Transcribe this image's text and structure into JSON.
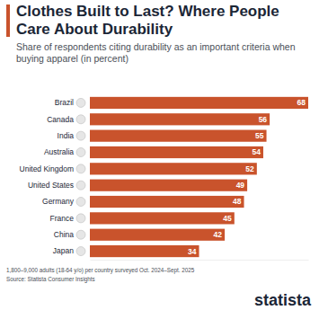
{
  "chart_data": {
    "type": "bar",
    "orientation": "horizontal",
    "title": "Clothes Built to Last? Where People Care About Durability",
    "subtitle": "Share of respondents citing durability as an important criteria when buying apparel (in percent)",
    "categories": [
      "Brazil",
      "Canada",
      "India",
      "Australia",
      "United Kingdom",
      "United States",
      "Germany",
      "France",
      "China",
      "Japan"
    ],
    "values": [
      68,
      56,
      55,
      54,
      52,
      49,
      48,
      45,
      42,
      34
    ],
    "color": "#c9532c",
    "xlim": [
      0,
      68
    ],
    "data_labels": true,
    "tick_labels": "y",
    "grid": false,
    "note": "1,800–9,000 adults (18-64 y/o) per country surveyed Oct. 2024–Sept. 2025",
    "source": "Source: Statista Consumer Insights",
    "logo": "statista"
  }
}
